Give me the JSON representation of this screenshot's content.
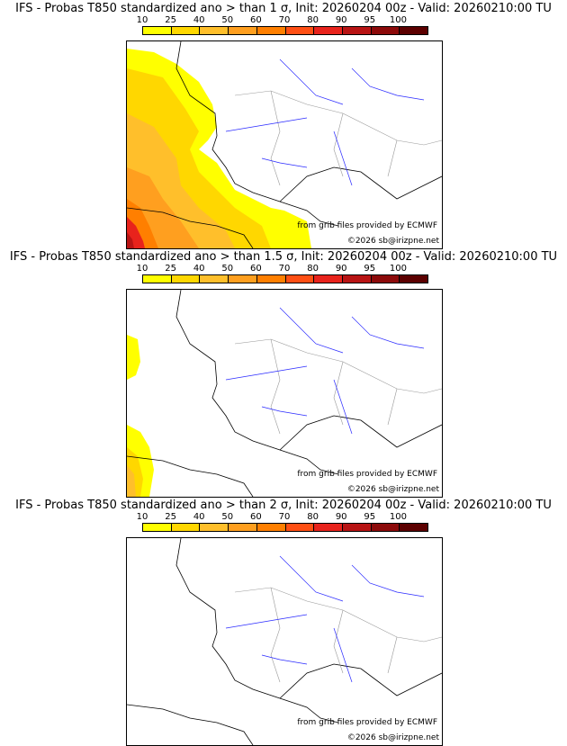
{
  "panels": [
    {
      "title": "IFS - Probas T850  standardized ano > than 1 σ, Init: 20260204 00z - Valid: 20260210:00 TU",
      "exceedance": "1"
    },
    {
      "title": "IFS - Probas T850  standardized ano > than 1.5 σ, Init: 20260204 00z - Valid: 20260210:00 TU",
      "exceedance": "1.5"
    },
    {
      "title": "IFS - Probas T850  standardized ano > than 2 σ, Init: 20260204 00z - Valid: 20260210:00 TU",
      "exceedance": "2"
    }
  ],
  "colorbar": {
    "ticks": [
      "10",
      "25",
      "40",
      "50",
      "60",
      "70",
      "80",
      "90",
      "95",
      "100"
    ],
    "colors": [
      "#ffff00",
      "#ffd700",
      "#ffbf2b",
      "#ff9f1f",
      "#ff7f00",
      "#ff4f14",
      "#e8231c",
      "#b81414",
      "#8c0a0a",
      "#5c0000"
    ]
  },
  "credits": {
    "source": "from grib files provided by ECMWF",
    "copyright": "©2026 sb@irizpne.net"
  },
  "colors": {
    "coast": "#000000",
    "rivers": "#2a2aff",
    "borders": "#9a9a9a"
  }
}
